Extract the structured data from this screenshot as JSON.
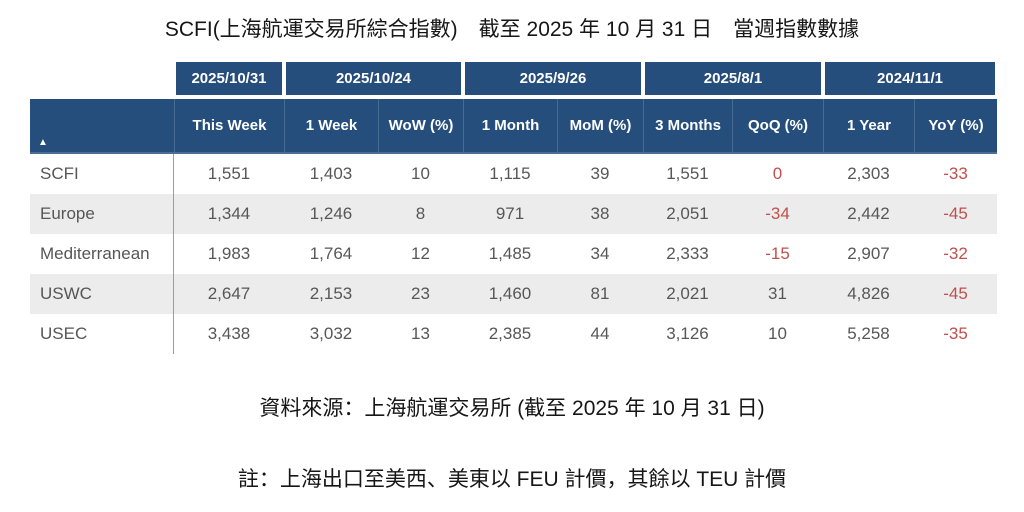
{
  "title": "SCFI(上海航運交易所綜合指數)　截至 2025 年 10 月 31 日　當週指數數據",
  "source": "資料來源：上海航運交易所 (截至 2025 年 10 月 31 日)",
  "note": "註：上海出口至美西、美東以 FEU 計價，其餘以 TEU 計價",
  "colors": {
    "header_navy": "#254E7C",
    "negative_red": "#C0504D",
    "alt_row_gray": "#ECECEC",
    "body_text": "#575757"
  },
  "table": {
    "sort_icon": "▲",
    "date_headers": [
      "2025/10/31",
      "2025/10/24",
      "2025/9/26",
      "2025/8/1",
      "2024/11/1"
    ],
    "columns": [
      "This Week",
      "1 Week",
      "WoW (%)",
      "1 Month",
      "MoM (%)",
      "3 Months",
      "QoQ (%)",
      "1 Year",
      "YoY (%)"
    ],
    "rows": [
      {
        "label": "SCFI",
        "values": [
          "1,551",
          "1,403",
          "10",
          "1,115",
          "39",
          "1,551",
          "0",
          "2,303",
          "-33"
        ],
        "tones": [
          "",
          "",
          "",
          "",
          "",
          "",
          "neg",
          "",
          "neg"
        ]
      },
      {
        "label": "Europe",
        "values": [
          "1,344",
          "1,246",
          "8",
          "971",
          "38",
          "2,051",
          "-34",
          "2,442",
          "-45"
        ],
        "tones": [
          "",
          "",
          "",
          "",
          "",
          "",
          "neg",
          "",
          "neg"
        ]
      },
      {
        "label": "Mediterranean",
        "values": [
          "1,983",
          "1,764",
          "12",
          "1,485",
          "34",
          "2,333",
          "-15",
          "2,907",
          "-32"
        ],
        "tones": [
          "",
          "",
          "",
          "",
          "",
          "",
          "neg",
          "",
          "neg"
        ]
      },
      {
        "label": "USWC",
        "values": [
          "2,647",
          "2,153",
          "23",
          "1,460",
          "81",
          "2,021",
          "31",
          "4,826",
          "-45"
        ],
        "tones": [
          "",
          "",
          "",
          "",
          "",
          "",
          "",
          "",
          "neg"
        ]
      },
      {
        "label": "USEC",
        "values": [
          "3,438",
          "3,032",
          "13",
          "2,385",
          "44",
          "3,126",
          "10",
          "5,258",
          "-35"
        ],
        "tones": [
          "",
          "",
          "",
          "",
          "",
          "",
          "",
          "",
          "neg"
        ]
      }
    ]
  },
  "chart_data": {
    "type": "table",
    "title": "SCFI(上海航運交易所綜合指數) 截至 2025 年 10 月 31 日 當週指數數據",
    "date_headers": [
      "2025/10/31",
      "2025/10/24",
      "2025/9/26",
      "2025/8/1",
      "2024/11/1"
    ],
    "columns": [
      "This Week",
      "1 Week",
      "WoW (%)",
      "1 Month",
      "MoM (%)",
      "3 Months",
      "QoQ (%)",
      "1 Year",
      "YoY (%)"
    ],
    "row_labels": [
      "SCFI",
      "Europe",
      "Mediterranean",
      "USWC",
      "USEC"
    ],
    "rows": [
      [
        1551,
        1403,
        10,
        1115,
        39,
        1551,
        0,
        2303,
        -33
      ],
      [
        1344,
        1246,
        8,
        971,
        38,
        2051,
        -34,
        2442,
        -45
      ],
      [
        1983,
        1764,
        12,
        1485,
        34,
        2333,
        -15,
        2907,
        -32
      ],
      [
        2647,
        2153,
        23,
        1460,
        81,
        2021,
        31,
        4826,
        -45
      ],
      [
        3438,
        3032,
        13,
        2385,
        44,
        3126,
        10,
        5258,
        -35
      ]
    ],
    "source": "資料來源：上海航運交易所 (截至 2025 年 10 月 31 日)",
    "note": "註：上海出口至美西、美東以 FEU 計價，其餘以 TEU 計價",
    "style_notes": "negative QoQ/YoY values rendered in red; alternating row shading"
  }
}
